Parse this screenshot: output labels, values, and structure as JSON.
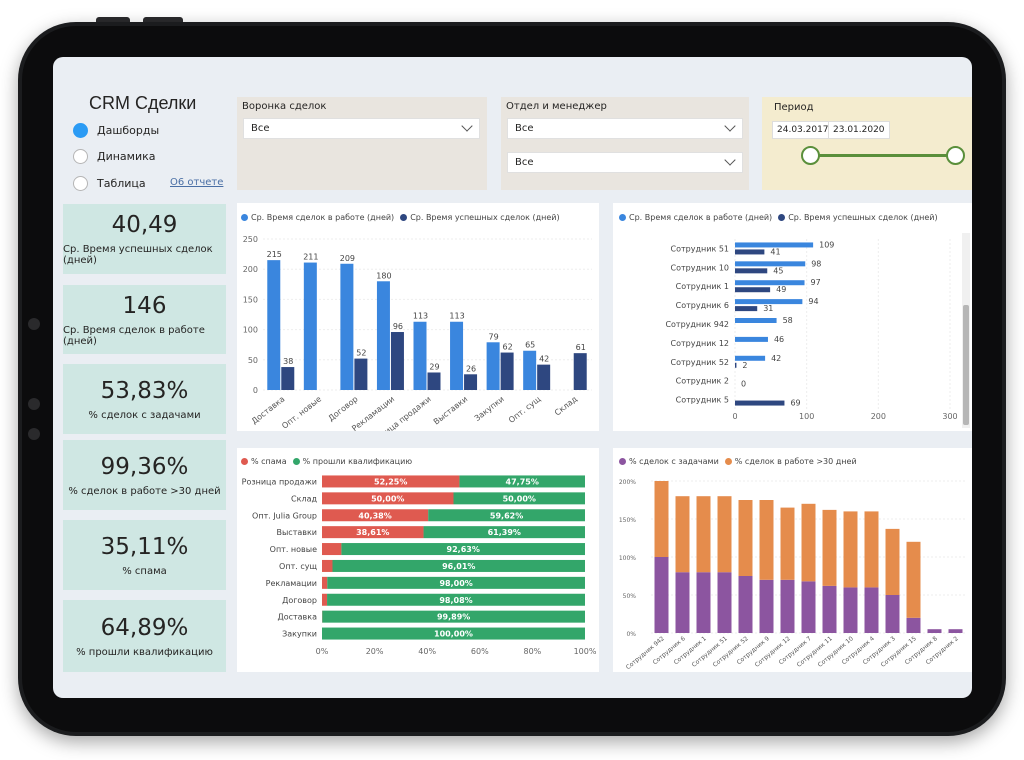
{
  "sidebar": {
    "title": "CRM Сделки",
    "nav": [
      {
        "label": "Дашборды",
        "selected": true
      },
      {
        "label": "Динамика",
        "selected": false
      },
      {
        "label": "Таблица",
        "selected": false
      }
    ],
    "about_link": "О6 отчете"
  },
  "kpis": [
    {
      "value": "40,49",
      "label": "Ср. Время успешных сделок (дней)"
    },
    {
      "value": "146",
      "label": "Ср. Время сделок в работе (дней)"
    },
    {
      "value": "53,83%",
      "label": "% сделок с задачами"
    },
    {
      "value": "99,36%",
      "label": "% сделок в работе >30 дней"
    },
    {
      "value": "35,11%",
      "label": "% спама"
    },
    {
      "value": "64,89%",
      "label": "% прошли квалификацию"
    }
  ],
  "filters": {
    "funnel": {
      "label": "Воронка сделок",
      "value": "Все"
    },
    "department": {
      "label": "Отдел и менеджер",
      "value1": "Все",
      "value2": "Все"
    },
    "period": {
      "label": "Период",
      "start": "24.03.2017",
      "end": "23.01.2020"
    }
  },
  "colors": {
    "blue": "#3a86de",
    "navy": "#2e4780",
    "red": "#df5a50",
    "green": "#33a66a",
    "purple": "#8c55a0",
    "orange": "#e58c4c"
  },
  "chart_data": [
    {
      "type": "bar",
      "legend": [
        "Ср. Время сделок в работе (дней)",
        "Ср. Время успешных сделок (дней)"
      ],
      "categories": [
        "Доставка",
        "Опт. новые",
        "Договор",
        "Рекламации",
        "Розница продажи",
        "Выставки",
        "Закупки",
        "Опт. сущ",
        "Склад"
      ],
      "series": [
        {
          "name": "Ср. Время сделок в работе (дней)",
          "values": [
            215,
            211,
            209,
            180,
            113,
            113,
            79,
            65,
            null
          ]
        },
        {
          "name": "Ср. Время успешных сделок (дней)",
          "values": [
            38,
            null,
            52,
            96,
            29,
            26,
            62,
            42,
            61
          ]
        }
      ],
      "ylim": [
        0,
        250
      ],
      "yticks": [
        "0",
        "50",
        "100",
        "150",
        "200",
        "250"
      ]
    },
    {
      "type": "bar",
      "orientation": "horizontal",
      "legend": [
        "Ср. Время сделок в работе (дней)",
        "Ср. Время успешных сделок (дней)"
      ],
      "categories": [
        "Сотрудник 51",
        "Сотрудник 10",
        "Сотрудник 1",
        "Сотрудник 6",
        "Сотрудник 942",
        "Сотрудник 12",
        "Сотрудник 52",
        "Сотрудник 2",
        "Сотрудник 5"
      ],
      "series": [
        {
          "name": "Ср. Время сделок в работе (дней)",
          "values": [
            109,
            98,
            97,
            94,
            58,
            46,
            42,
            null,
            null
          ]
        },
        {
          "name": "Ср. Время успешных сделок (дней)",
          "values": [
            41,
            45,
            49,
            31,
            null,
            null,
            2,
            0,
            69
          ]
        }
      ],
      "xlim": [
        0,
        300
      ],
      "xticks": [
        "0",
        "100",
        "200",
        "300"
      ]
    },
    {
      "type": "bar",
      "orientation": "horizontal",
      "stacked": "percent",
      "legend": [
        "% спама",
        "% прошли квалификацию"
      ],
      "categories": [
        "Розница продажи",
        "Склад",
        "Опт. Julia Group",
        "Выставки",
        "Опт. новые",
        "Опт. сущ",
        "Рекламации",
        "Договор",
        "Доставка",
        "Закупки"
      ],
      "series": [
        {
          "name": "% спама",
          "values": [
            52.25,
            50.0,
            40.38,
            38.61,
            7.37,
            3.99,
            2.0,
            1.92,
            0.11,
            0.0
          ],
          "labels": [
            "52,25%",
            "50,00%",
            "40,38%",
            "38,61%",
            "",
            "",
            "",
            "",
            "",
            ""
          ]
        },
        {
          "name": "% прошли квалификацию",
          "values": [
            47.75,
            50.0,
            59.62,
            61.39,
            92.63,
            96.01,
            98.0,
            98.08,
            99.89,
            100.0
          ],
          "labels": [
            "47,75%",
            "50,00%",
            "59,62%",
            "61,39%",
            "92,63%",
            "96,01%",
            "98,00%",
            "98,08%",
            "99,89%",
            "100,00%"
          ]
        }
      ],
      "xticks": [
        "0%",
        "20%",
        "40%",
        "60%",
        "80%",
        "100%"
      ]
    },
    {
      "type": "bar",
      "stacked": true,
      "legend": [
        "% сделок с задачами",
        "% сделок в работе >30 дней"
      ],
      "categories": [
        "Сотрудник 942",
        "Сотрудник 6",
        "Сотрудник 1",
        "Сотрудник 51",
        "Сотрудник 52",
        "Сотрудник 9",
        "Сотрудник 12",
        "Сотрудник 7",
        "Сотрудник 11",
        "Сотрудник 10",
        "Сотрудник 4",
        "Сотрудник 3",
        "Сотрудник 15",
        "Сотрудник 8",
        "Сотрудник 2"
      ],
      "series": [
        {
          "name": "% сделок с задачами",
          "values": [
            100,
            80,
            80,
            80,
            75,
            70,
            70,
            68,
            62,
            60,
            60,
            50,
            20,
            5,
            5
          ]
        },
        {
          "name": "% сделок в работе >30 дней",
          "values": [
            100,
            100,
            100,
            100,
            100,
            105,
            95,
            102,
            100,
            100,
            100,
            87,
            100,
            0,
            0
          ]
        }
      ],
      "ylim": [
        0,
        200
      ],
      "yticks": [
        "0%",
        "50%",
        "100%",
        "150%",
        "200%"
      ]
    }
  ]
}
